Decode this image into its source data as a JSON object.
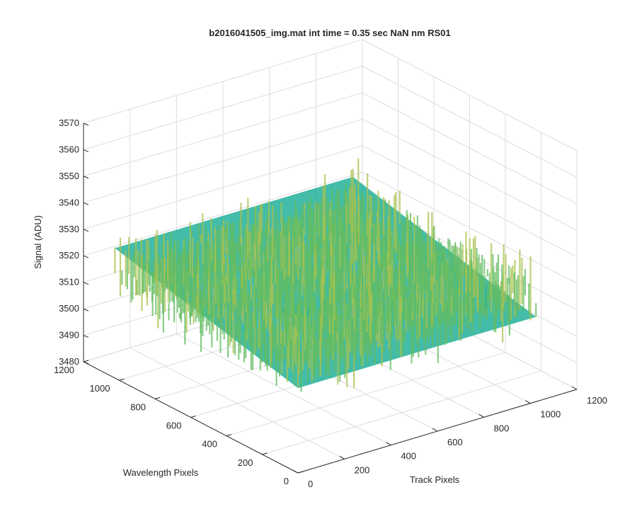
{
  "figure": {
    "background": "#ffffff"
  },
  "chart_data": {
    "type": "surface",
    "title": "b2016041505_img.mat int time = 0.35 sec  NaN nm RS01",
    "xlabel": "Track Pixels",
    "ylabel": "Wavelength Pixels",
    "zlabel": "Signal (ADU)",
    "xlim": [
      0,
      1200
    ],
    "ylim": [
      0,
      1200
    ],
    "zlim": [
      3480,
      3570
    ],
    "xticks": [
      "0",
      "200",
      "400",
      "600",
      "800",
      "1000",
      "1200"
    ],
    "yticks": [
      "0",
      "200",
      "400",
      "600",
      "800",
      "1000",
      "1200"
    ],
    "zticks": [
      "3480",
      "3490",
      "3500",
      "3510",
      "3520",
      "3530",
      "3540",
      "3550",
      "3560",
      "3570"
    ],
    "grid": true,
    "surface_extent": {
      "x": [
        0,
        1024
      ],
      "y": [
        0,
        1024
      ]
    },
    "surface_values": {
      "mean": 3520,
      "min": 3490,
      "max": 3555
    },
    "colormap": [
      "#1f9ec2",
      "#22b09a",
      "#62bd62",
      "#a9c24e",
      "#d9c53c"
    ]
  }
}
